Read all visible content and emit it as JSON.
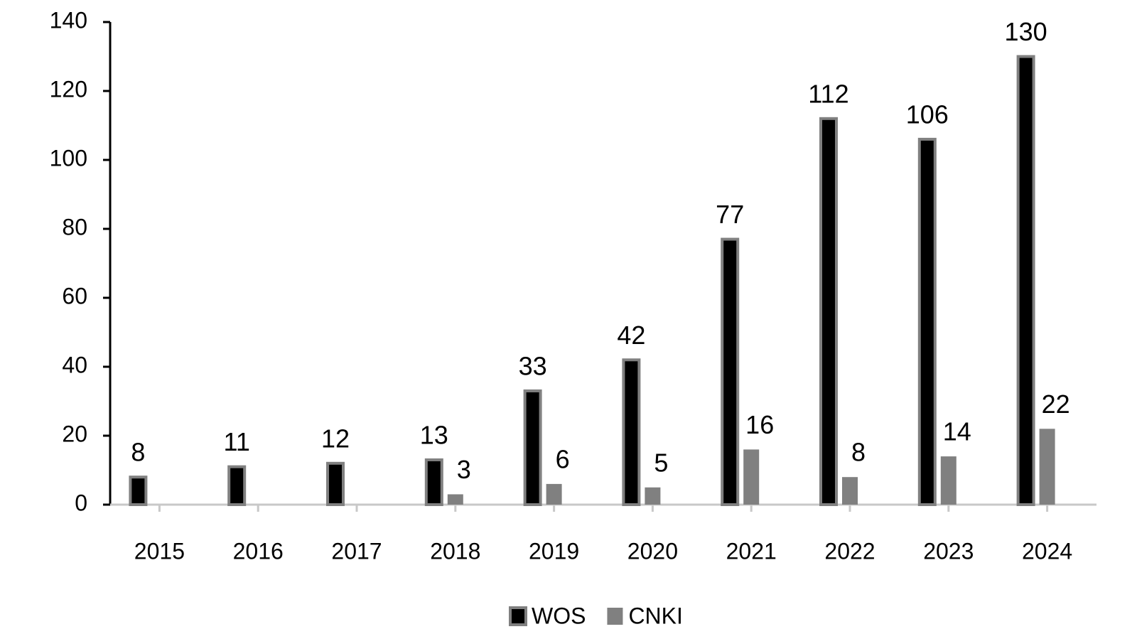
{
  "chart_data": {
    "type": "bar",
    "categories": [
      "2015",
      "2016",
      "2017",
      "2018",
      "2019",
      "2020",
      "2021",
      "2022",
      "2023",
      "2024"
    ],
    "series": [
      {
        "name": "WOS",
        "color": "#000000",
        "values": [
          8,
          11,
          12,
          13,
          33,
          42,
          77,
          112,
          106,
          130
        ]
      },
      {
        "name": "CNKI",
        "color": "#808080",
        "values": [
          null,
          null,
          null,
          3,
          6,
          5,
          16,
          8,
          14,
          22
        ]
      }
    ],
    "ylim": [
      0,
      140
    ],
    "yticks": [
      0,
      20,
      40,
      60,
      80,
      100,
      120,
      140
    ],
    "legend": "bottom"
  }
}
